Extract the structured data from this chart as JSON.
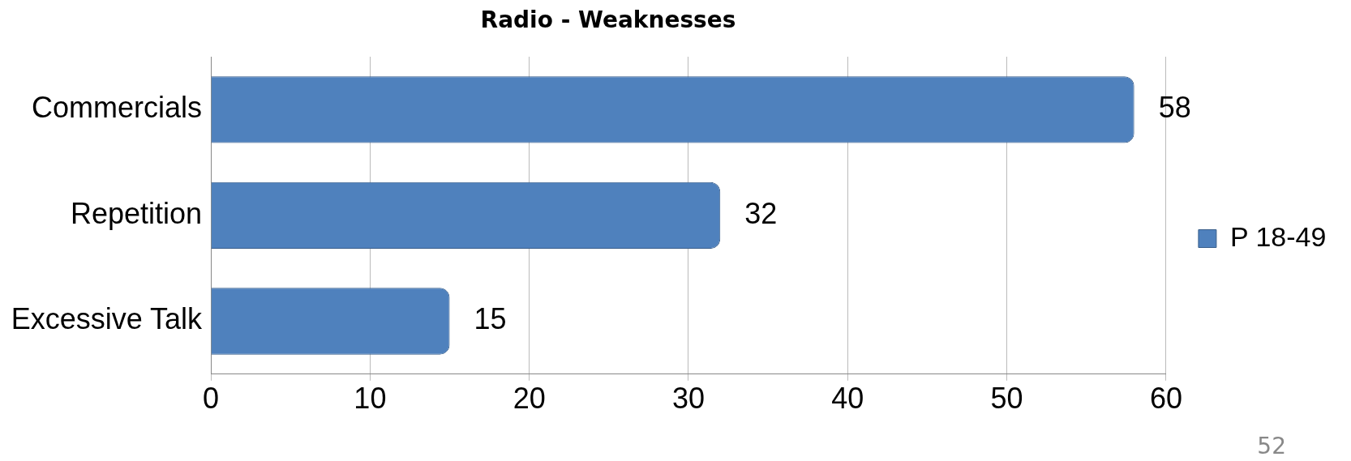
{
  "chart_data": {
    "type": "bar",
    "orientation": "horizontal",
    "title": "Radio - Weaknesses",
    "categories": [
      "Commercials",
      "Repetition",
      "Excessive Talk"
    ],
    "series": [
      {
        "name": "P 18-49",
        "color": "#4f81bd",
        "values": [
          58,
          32,
          15
        ]
      }
    ],
    "xlim": [
      0,
      60
    ],
    "xticks": [
      0,
      10,
      20,
      30,
      40,
      50,
      60
    ],
    "grid": "x",
    "legend": "right",
    "data_labels": true,
    "annotations": [
      "52"
    ]
  }
}
